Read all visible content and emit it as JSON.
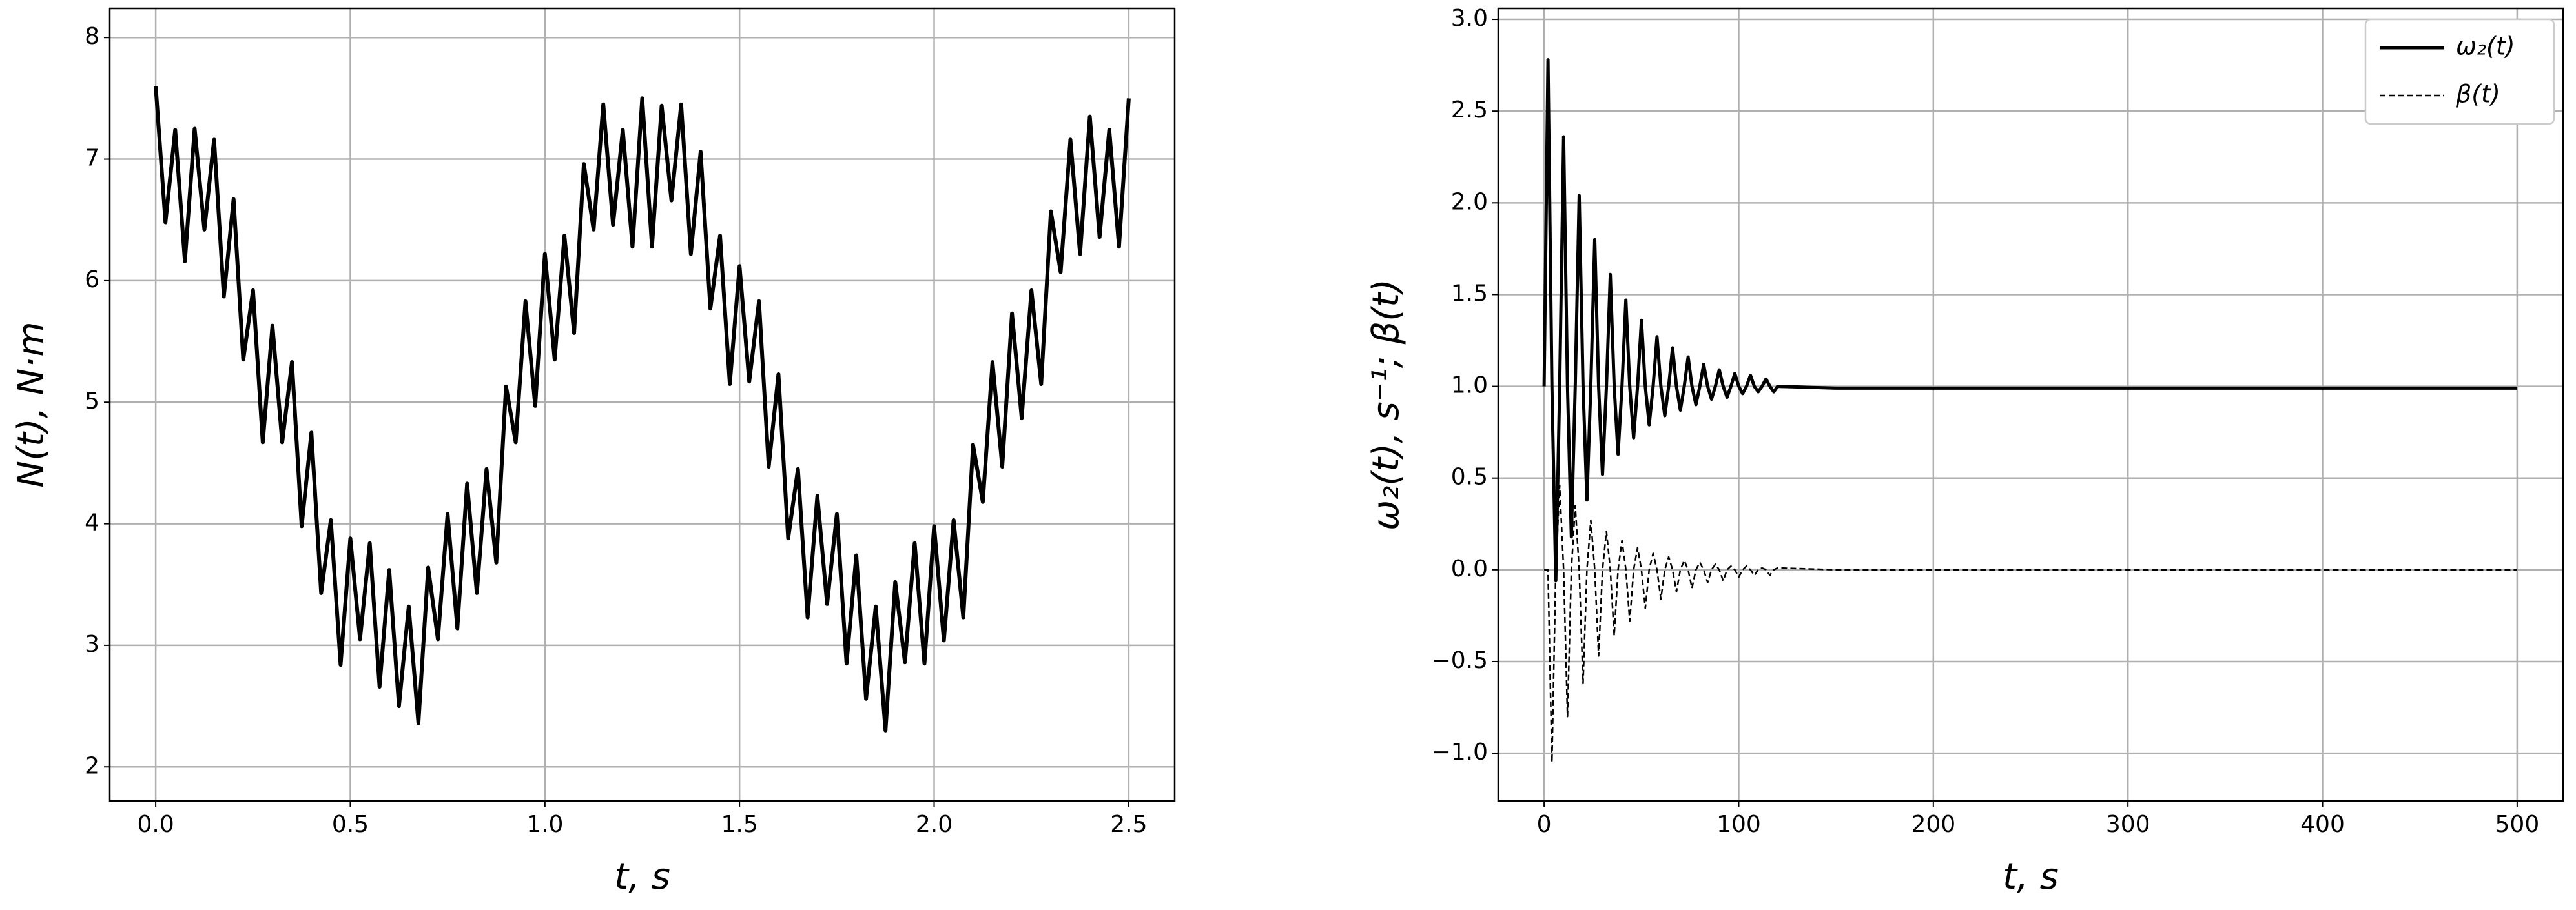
{
  "chart_data": [
    {
      "type": "line",
      "xlabel": "t, s",
      "ylabel": "N(t), N·m",
      "grid": true,
      "xlim": [
        -0.118,
        2.618
      ],
      "ylim": [
        1.72,
        8.24
      ],
      "xticks": [
        {
          "value": 0,
          "label": "0.0"
        },
        {
          "value": 0.5,
          "label": "0.5"
        },
        {
          "value": 1,
          "label": "1.0"
        },
        {
          "value": 1.5,
          "label": "1.5"
        },
        {
          "value": 2,
          "label": "2.0"
        },
        {
          "value": 2.5,
          "label": "2.5"
        }
      ],
      "yticks": [
        2,
        3,
        4,
        5,
        6,
        7,
        8
      ],
      "x": [
        0,
        0.025,
        0.05,
        0.075,
        0.1,
        0.125,
        0.15,
        0.175,
        0.2,
        0.225,
        0.25,
        0.275,
        0.3,
        0.325,
        0.35,
        0.375,
        0.4,
        0.425,
        0.45,
        0.475,
        0.5,
        0.525,
        0.55,
        0.575,
        0.6,
        0.625,
        0.65,
        0.675,
        0.7,
        0.725,
        0.75,
        0.775,
        0.8,
        0.825,
        0.85,
        0.875,
        0.9,
        0.925,
        0.95,
        0.975,
        1,
        1.025,
        1.05,
        1.075,
        1.1,
        1.125,
        1.15,
        1.175,
        1.2,
        1.225,
        1.25,
        1.275,
        1.3,
        1.325,
        1.35,
        1.375,
        1.4,
        1.425,
        1.45,
        1.475,
        1.5,
        1.525,
        1.55,
        1.575,
        1.6,
        1.625,
        1.65,
        1.675,
        1.7,
        1.725,
        1.75,
        1.775,
        1.8,
        1.825,
        1.85,
        1.875,
        1.9,
        1.925,
        1.95,
        1.975,
        2,
        2.025,
        2.05,
        2.075,
        2.1,
        2.125,
        2.15,
        2.175,
        2.2,
        2.225,
        2.25,
        2.275,
        2.3,
        2.325,
        2.35,
        2.375,
        2.4,
        2.425,
        2.45,
        2.475,
        2.5
      ],
      "series": [
        {
          "color": "#000000",
          "linestyle": "solid",
          "values": [
            7.6,
            6.48,
            7.24,
            6.16,
            7.25,
            6.42,
            7.16,
            5.87,
            6.67,
            5.35,
            5.92,
            4.67,
            5.63,
            4.67,
            5.33,
            3.98,
            4.75,
            3.43,
            4.03,
            2.84,
            3.88,
            3.05,
            3.84,
            2.66,
            3.62,
            2.5,
            3.32,
            2.36,
            3.64,
            3.05,
            4.08,
            3.14,
            4.33,
            3.43,
            4.45,
            3.68,
            5.13,
            4.67,
            5.83,
            4.97,
            6.22,
            5.35,
            6.37,
            5.57,
            6.96,
            6.42,
            7.45,
            6.46,
            7.24,
            6.28,
            7.5,
            6.28,
            7.44,
            6.66,
            7.45,
            6.22,
            7.06,
            5.77,
            6.37,
            5.15,
            6.12,
            5.17,
            5.83,
            4.47,
            5.23,
            3.88,
            4.45,
            3.23,
            4.23,
            3.34,
            4.08,
            2.85,
            3.74,
            2.56,
            3.32,
            2.3,
            3.52,
            2.86,
            3.84,
            2.85,
            3.98,
            3.04,
            4.03,
            3.23,
            4.65,
            4.18,
            5.33,
            4.47,
            5.73,
            4.87,
            5.92,
            5.15,
            6.57,
            6.07,
            7.16,
            6.22,
            7.35,
            6.36,
            7.24,
            6.28,
            7.5
          ]
        }
      ]
    },
    {
      "type": "line",
      "xlabel": "t, s",
      "ylabel": "ω₂(t), s⁻¹; β(t)",
      "grid": true,
      "legend": "upper right",
      "xlim": [
        -23.6,
        523.6
      ],
      "ylim": [
        -1.26,
        3.06
      ],
      "xticks": [
        0,
        100,
        200,
        300,
        400,
        500
      ],
      "yticks": [
        {
          "value": -1,
          "label": "−1.0"
        },
        {
          "value": -0.5,
          "label": "−0.5"
        },
        {
          "value": 0,
          "label": "0.0"
        },
        {
          "value": 0.5,
          "label": "0.5"
        },
        {
          "value": 1,
          "label": "1.0"
        },
        {
          "value": 1.5,
          "label": "1.5"
        },
        {
          "value": 2,
          "label": "2.0"
        },
        {
          "value": 2.5,
          "label": "2.5"
        },
        {
          "value": 3,
          "label": "3.0"
        }
      ],
      "x": [
        0,
        2,
        4,
        6,
        8,
        10,
        12,
        14,
        16,
        18,
        20,
        22,
        24,
        26,
        28,
        30,
        32,
        34,
        36,
        38,
        40,
        42,
        44,
        46,
        48,
        50,
        52,
        54,
        56,
        58,
        60,
        62,
        64,
        66,
        68,
        70,
        72,
        74,
        76,
        78,
        80,
        82,
        84,
        86,
        88,
        90,
        92,
        94,
        96,
        98,
        100,
        102,
        104,
        106,
        108,
        110,
        112,
        114,
        116,
        118,
        120,
        150,
        200,
        300,
        400,
        500
      ],
      "series": [
        {
          "name": "ω₂(t)",
          "color": "#000000",
          "linestyle": "solid",
          "values": [
            1,
            2.78,
            1,
            -0.06,
            1,
            2.36,
            1,
            0.18,
            1,
            2.04,
            1,
            0.38,
            1,
            1.8,
            1,
            0.52,
            1,
            1.61,
            1,
            0.63,
            1,
            1.47,
            1,
            0.72,
            1,
            1.36,
            1,
            0.79,
            1,
            1.27,
            1,
            0.84,
            1,
            1.21,
            1,
            0.87,
            1,
            1.16,
            1,
            0.9,
            1,
            1.12,
            1,
            0.93,
            1,
            1.09,
            1,
            0.94,
            1,
            1.07,
            1,
            0.96,
            1,
            1.06,
            1,
            0.97,
            1,
            1.04,
            1,
            0.97,
            1,
            0.99,
            0.99,
            0.99,
            0.99,
            0.99
          ]
        },
        {
          "name": "β(t)",
          "color": "#000000",
          "linestyle": "dashed",
          "values": [
            0,
            0,
            -1.05,
            0,
            0.46,
            0,
            -0.8,
            0,
            0.35,
            0,
            -0.62,
            0,
            0.27,
            0,
            -0.47,
            0,
            0.21,
            0,
            -0.36,
            0,
            0.16,
            0,
            -0.28,
            0,
            0.12,
            0,
            -0.21,
            0,
            0.09,
            0,
            -0.16,
            0,
            0.07,
            0,
            -0.12,
            0,
            0.05,
            0,
            -0.1,
            0,
            0.04,
            0,
            -0.07,
            0,
            0.03,
            0,
            -0.06,
            0,
            0.02,
            0,
            -0.04,
            0,
            0.02,
            0,
            -0.03,
            0,
            0.01,
            0,
            -0.03,
            0,
            0.01,
            0,
            0,
            0,
            0,
            0
          ]
        }
      ]
    }
  ]
}
